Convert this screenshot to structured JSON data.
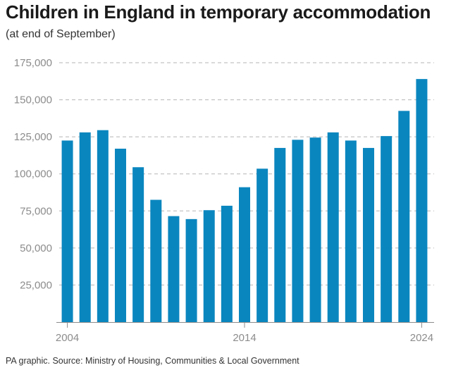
{
  "title": "Children in England in temporary accommodation",
  "subtitle": "(at end of September)",
  "source": "PA graphic. Source: Ministry of Housing, Communities & Local Government",
  "colors": {
    "bar": "#0a86bf",
    "grid": "#b5b5b5",
    "axis": "#8c8c8c"
  },
  "chart_data": {
    "type": "bar",
    "title": "Children in England in temporary accommodation",
    "subtitle": "(at end of September)",
    "categories": [
      "2004",
      "2005",
      "2006",
      "2007",
      "2008",
      "2009",
      "2010",
      "2011",
      "2012",
      "2013",
      "2014",
      "2015",
      "2016",
      "2017",
      "2018",
      "2019",
      "2020",
      "2021",
      "2022",
      "2023",
      "2024"
    ],
    "values": [
      122500,
      128000,
      129500,
      117000,
      104500,
      82500,
      71500,
      69500,
      75500,
      78500,
      91000,
      103500,
      117500,
      123000,
      124500,
      128000,
      122500,
      117500,
      125500,
      142500,
      164000
    ],
    "x_tick_labels": [
      "2004",
      "2014",
      "2024"
    ],
    "y_ticks": [
      25000,
      50000,
      75000,
      100000,
      125000,
      150000,
      175000
    ],
    "y_tick_labels": [
      "25,000",
      "50,000",
      "75,000",
      "100,000",
      "125,000",
      "150,000",
      "175,000"
    ],
    "ylim": [
      0,
      175000
    ],
    "xlabel": "",
    "ylabel": "",
    "grid": "dashed horizontal"
  }
}
